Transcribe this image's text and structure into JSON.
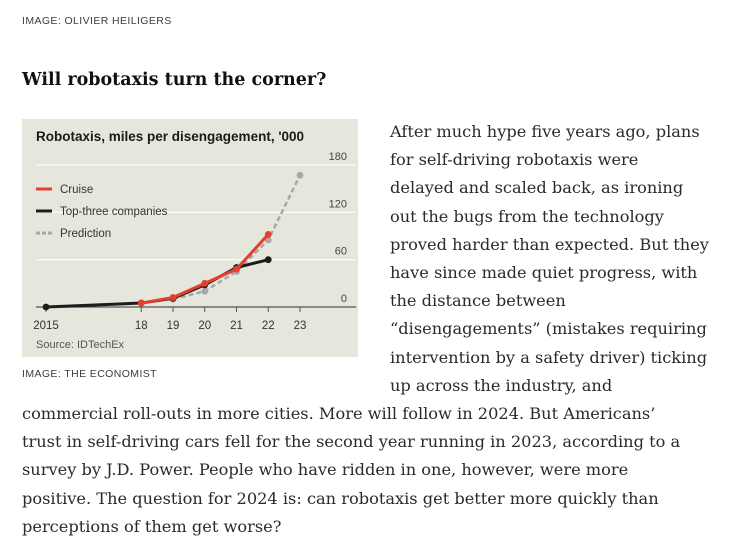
{
  "image_credit_top": "IMAGE: OLIVIER HEILIGERS",
  "headline": "Will robotaxis turn the corner?",
  "image_credit_chart": "IMAGE: THE ECONOMIST",
  "body_lines_right": [
    "After much hype five years ago, plans",
    "for self-driving robotaxis were",
    "delayed and scaled back, as ironing",
    "out the bugs from the technology",
    "proved harder than expected. But they",
    "have since made quiet progress, with",
    "the distance between",
    "“disengagements” (mistakes requiring",
    "intervention by a safety driver) ticking",
    "up across the industry, and"
  ],
  "body_lines_bottom": [
    "commercial roll-outs in more cities. More will follow in 2024. But Americans’",
    "trust in self-driving cars fell for the second year running in 2023, according to a",
    "survey by J.D. Power. People who have ridden in one, however, were more",
    "positive. The question for 2024 is: can robotaxis get better more quickly than",
    "perceptions of them get worse?"
  ],
  "chart_data": {
    "type": "line",
    "title": "Robotaxis, miles per disengagement, '000",
    "source": "Source: IDTechEx",
    "x_tick_labels": [
      "2015",
      "18",
      "19",
      "20",
      "21",
      "22",
      "23"
    ],
    "x_ticks": [
      2015,
      2018,
      2019,
      2020,
      2021,
      2022,
      2023
    ],
    "y_ticks": [
      0,
      60,
      120,
      180
    ],
    "xlim": [
      2015,
      2023
    ],
    "ylim": [
      0,
      180
    ],
    "grid": true,
    "y_axis_side": "right",
    "legend_position": "top-left",
    "series": [
      {
        "name": "Cruise",
        "color": "#e3412f",
        "style": "solid",
        "x": [
          2018,
          2019,
          2020,
          2021,
          2022
        ],
        "y": [
          5,
          12,
          30,
          48,
          92
        ]
      },
      {
        "name": "Top-three companies",
        "color": "#1c1c1c",
        "style": "solid",
        "x": [
          2015,
          2018,
          2019,
          2020,
          2021,
          2022
        ],
        "y": [
          0,
          5,
          11,
          28,
          50,
          60
        ]
      },
      {
        "name": "Prediction",
        "color": "#a8a8a8",
        "style": "dashed",
        "x": [
          2019,
          2020,
          2021,
          2022,
          2023
        ],
        "y": [
          10,
          20,
          45,
          85,
          167
        ]
      }
    ]
  }
}
